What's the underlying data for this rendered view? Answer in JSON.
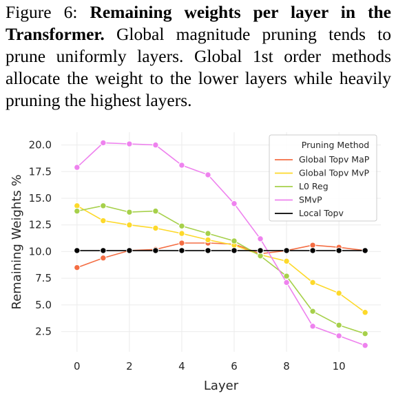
{
  "caption": {
    "label": "Figure 6:",
    "title": "Remaining weights per layer in the Transformer.",
    "body": "Global magnitude pruning tends to prune uniformly layers. Global 1st order methods allocate the weight to the lower layers while heavily pruning the highest layers."
  },
  "chart_data": {
    "type": "line",
    "xlabel": "Layer",
    "ylabel": "Remaining Weights %",
    "xlim": [
      -0.6,
      11.6
    ],
    "ylim": [
      0.6,
      21.2
    ],
    "xticks": [
      0,
      2,
      4,
      6,
      8,
      10
    ],
    "yticks": [
      2.5,
      5.0,
      7.5,
      10.0,
      12.5,
      15.0,
      17.5,
      20.0
    ],
    "grid": true,
    "legend": {
      "title": "Pruning Method",
      "placement": "top-right"
    },
    "x": [
      0,
      1,
      2,
      3,
      4,
      5,
      6,
      7,
      8,
      9,
      10,
      11
    ],
    "series": [
      {
        "name": "Global Topv MaP",
        "color": "#f46d43",
        "values": [
          8.5,
          9.4,
          10.1,
          10.2,
          10.8,
          10.8,
          10.7,
          9.8,
          10.1,
          10.6,
          10.4,
          10.1
        ]
      },
      {
        "name": "Global Topv MvP",
        "color": "#fdd92a",
        "values": [
          14.3,
          12.9,
          12.5,
          12.2,
          11.7,
          11.1,
          10.6,
          9.7,
          9.1,
          7.1,
          6.1,
          4.3
        ]
      },
      {
        "name": "L0 Reg",
        "color": "#a6d04a",
        "values": [
          13.8,
          14.3,
          13.7,
          13.8,
          12.4,
          11.7,
          11.0,
          9.6,
          7.7,
          4.4,
          3.1,
          2.3
        ]
      },
      {
        "name": "SMvP",
        "color": "#ee82ee",
        "values": [
          17.9,
          20.2,
          20.1,
          20.0,
          18.1,
          17.2,
          14.5,
          11.2,
          7.1,
          3.0,
          2.1,
          1.2
        ]
      },
      {
        "name": "Local Topv",
        "color": "#000000",
        "values": [
          10.1,
          10.1,
          10.1,
          10.1,
          10.1,
          10.1,
          10.1,
          10.1,
          10.1,
          10.1,
          10.1,
          10.1
        ]
      }
    ]
  }
}
